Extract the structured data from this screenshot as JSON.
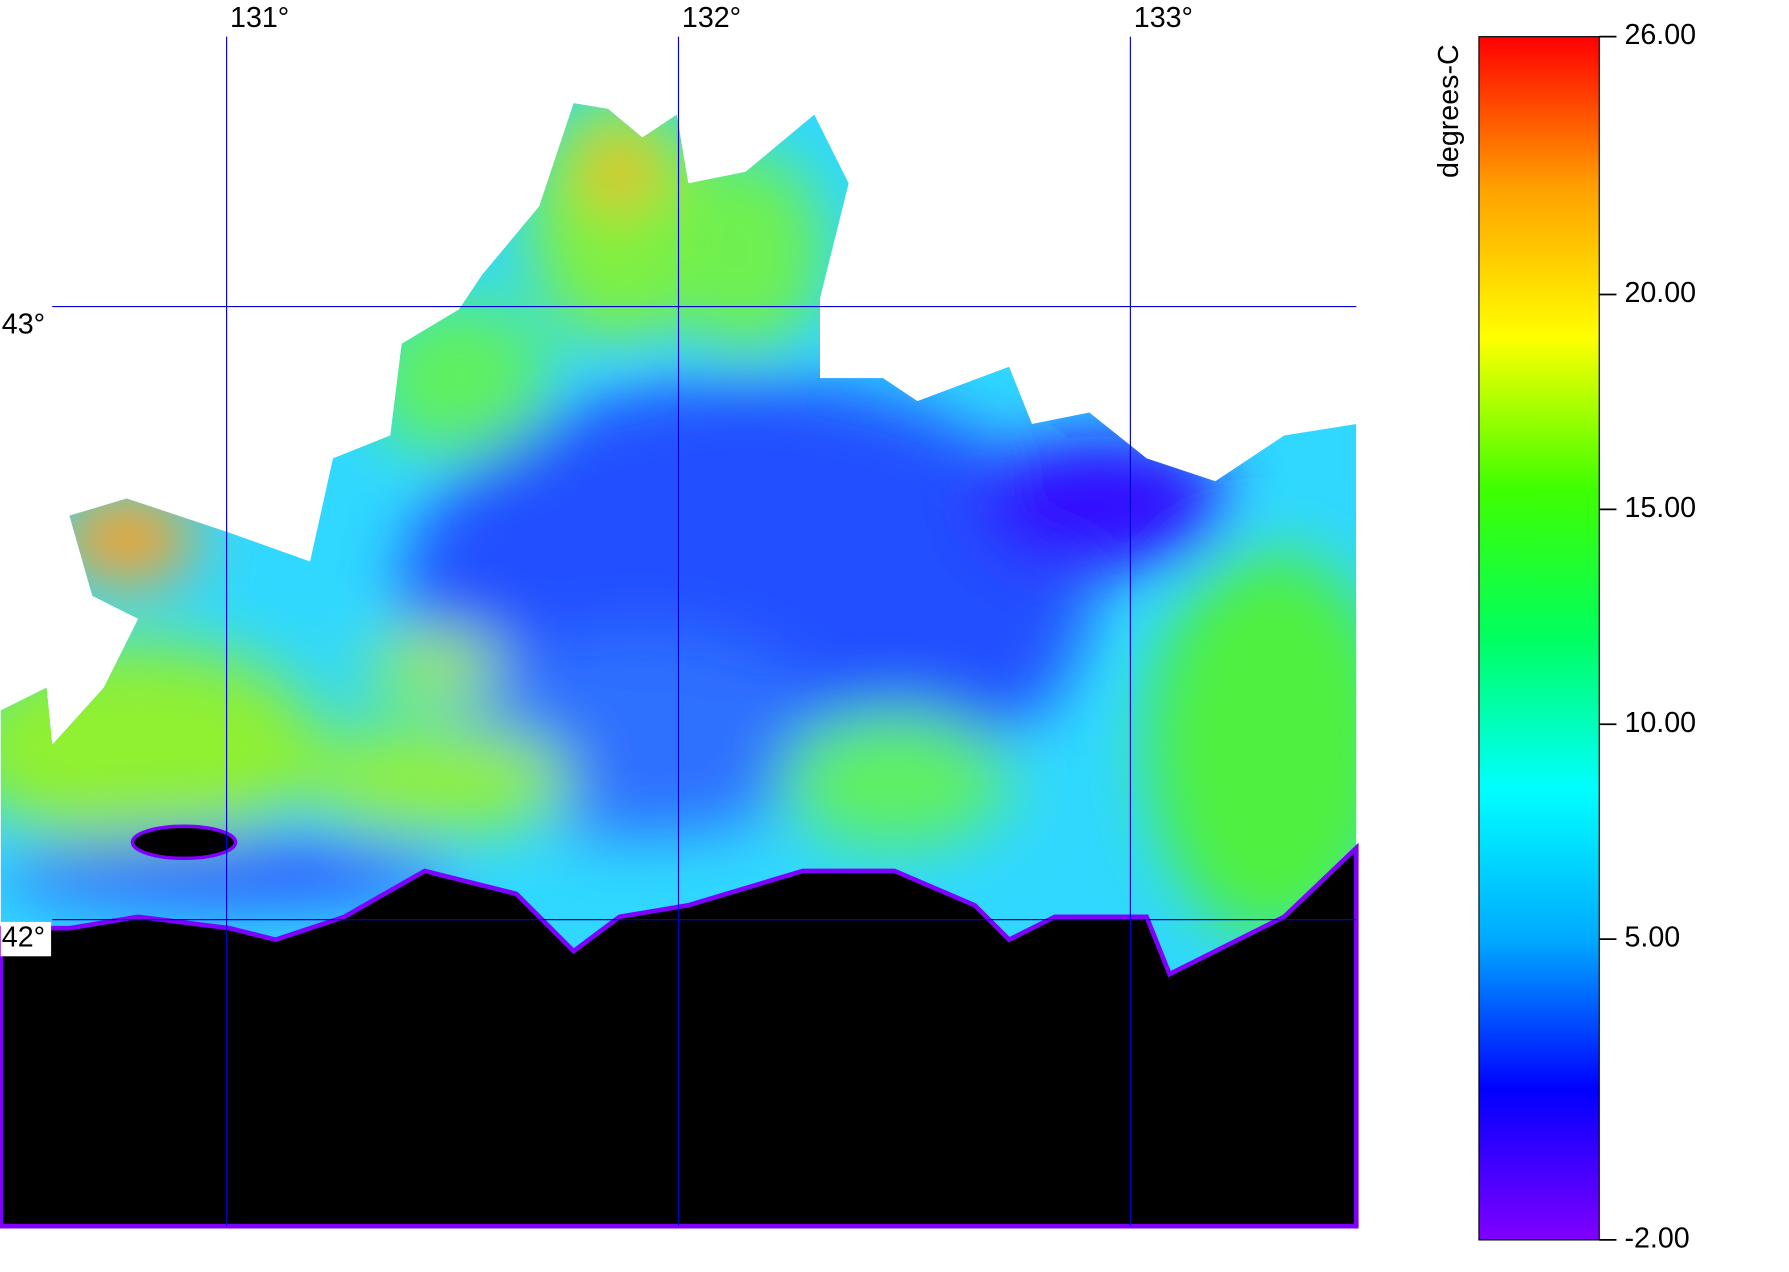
{
  "map": {
    "longitude": {
      "lim": [
        130.5,
        133.5
      ],
      "ticks": [
        {
          "value": 131,
          "label": "131°"
        },
        {
          "value": 132,
          "label": "132°"
        },
        {
          "value": 133,
          "label": "133°"
        }
      ]
    },
    "latitude": {
      "lim": [
        41.5,
        43.5
      ],
      "ticks": [
        {
          "value": 43,
          "label": "43°"
        },
        {
          "value": 42,
          "label": "42°"
        }
      ]
    },
    "grid_color": "#0000cc"
  },
  "colorbar": {
    "label": "degrees-C",
    "lim": [
      -2,
      26
    ],
    "ticks": [
      {
        "value": 26,
        "label": "26.00"
      },
      {
        "value": 20,
        "label": "20.00"
      },
      {
        "value": 15,
        "label": "15.00"
      },
      {
        "value": 10,
        "label": "10.00"
      },
      {
        "value": 5,
        "label": "5.00"
      },
      {
        "value": -2,
        "label": "-2.00"
      }
    ],
    "colors": [
      "#8000ff",
      "#0000ff",
      "#00aaff",
      "#00ffff",
      "#00ff60",
      "#40ff00",
      "#ffff00",
      "#ffa000",
      "#ff0000"
    ]
  }
}
